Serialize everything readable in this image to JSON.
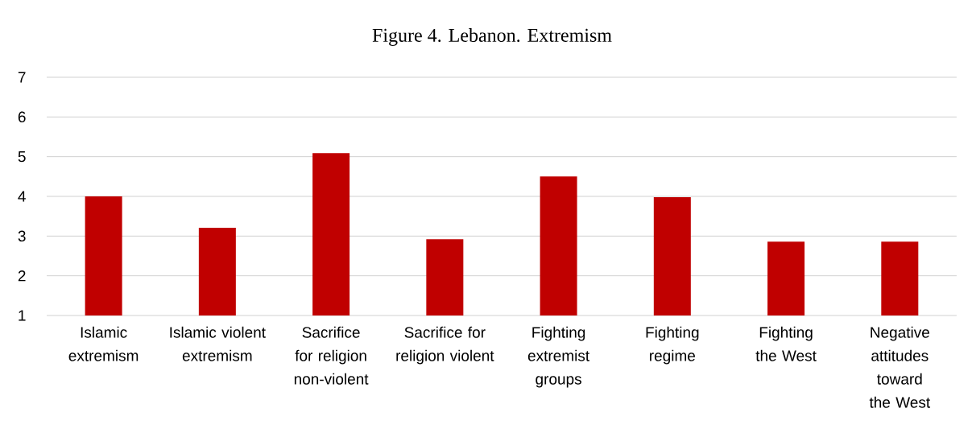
{
  "chart_data": {
    "type": "bar",
    "title": "Figure 4. Lebanon. Extremism",
    "categories": [
      "Islamic extremism",
      "Islamic violent extremism",
      "Sacrifice for religion non-violent",
      "Sacrifice for religion violent",
      "Fighting extremist groups",
      "Fighting regime",
      "Fighting the West",
      "Negative attitudes toward the West"
    ],
    "values": [
      4.0,
      3.21,
      5.09,
      2.92,
      4.5,
      3.98,
      2.86,
      2.86
    ],
    "color": "#c00000",
    "ylim": [
      1,
      7
    ],
    "yticks": [
      1,
      2,
      3,
      4,
      5,
      6,
      7
    ],
    "grid": "y"
  }
}
